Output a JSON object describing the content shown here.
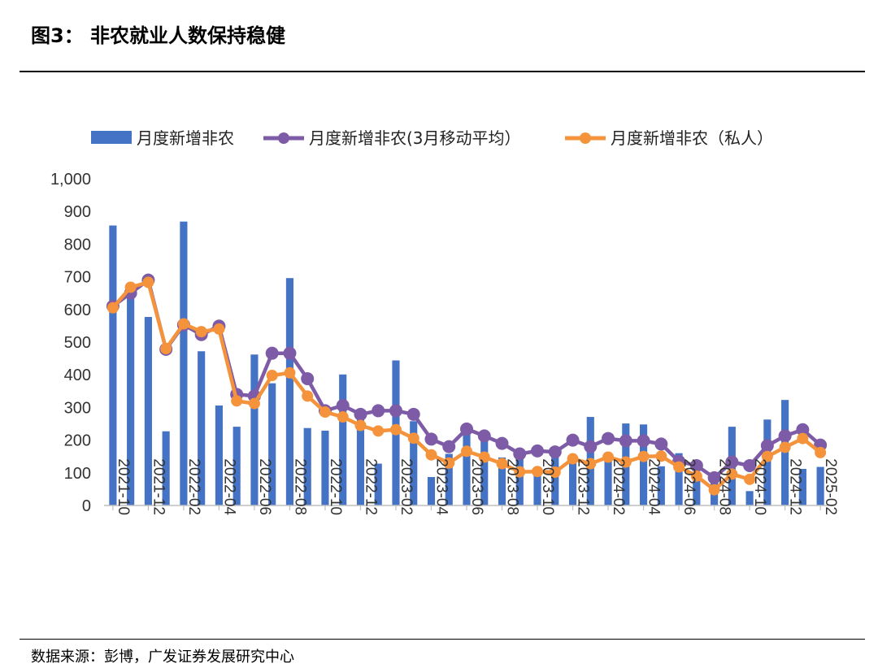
{
  "figure": {
    "title": "图3：  非农就业人数保持稳健",
    "source": "数据来源：彭博，广发证券发展研究中心"
  },
  "colors": {
    "bar": "#4472C4",
    "ma3": "#7D5BA6",
    "private": "#F4933B",
    "axis": "#BFBFBF",
    "rule": "#000000"
  },
  "chart_data": {
    "type": "bar",
    "ylim": [
      0,
      1000
    ],
    "yticks": [
      "0",
      "100",
      "200",
      "300",
      "400",
      "500",
      "600",
      "700",
      "800",
      "900",
      "1,000"
    ],
    "legend": "top",
    "grid": false,
    "x": [
      "2021-10",
      "2021-11",
      "2021-12",
      "2022-01",
      "2022-02",
      "2022-03",
      "2022-04",
      "2022-05",
      "2022-06",
      "2022-07",
      "2022-08",
      "2022-09",
      "2022-10",
      "2022-11",
      "2022-12",
      "2023-01",
      "2023-02",
      "2023-03",
      "2023-04",
      "2023-05",
      "2023-06",
      "2023-07",
      "2023-08",
      "2023-09",
      "2023-10",
      "2023-11",
      "2023-12",
      "2024-01",
      "2024-02",
      "2024-03",
      "2024-04",
      "2024-05",
      "2024-06",
      "2024-07",
      "2024-08",
      "2024-09",
      "2024-10",
      "2024-11",
      "2024-12",
      "2025-01",
      "2025-02"
    ],
    "xtick_labels": [
      "2021-10",
      "",
      "2021-12",
      "",
      "2022-02",
      "",
      "2022-04",
      "",
      "2022-06",
      "",
      "2022-08",
      "",
      "2022-10",
      "",
      "2022-12",
      "",
      "2023-02",
      "",
      "2023-04",
      "",
      "2023-06",
      "",
      "2023-08",
      "",
      "2023-10",
      "",
      "2023-12",
      "",
      "2024-02",
      "",
      "2024-04",
      "",
      "2024-06",
      "",
      "2024-08",
      "",
      "2024-10",
      "",
      "2024-12",
      "",
      "2025-02"
    ],
    "series": [
      {
        "name": "月度新增非农",
        "type": "bar",
        "values": [
          857,
          640,
          577,
          227,
          869,
          472,
          306,
          241,
          462,
          374,
          696,
          237,
          229,
          401,
          275,
          128,
          444,
          258,
          87,
          158,
          228,
          215,
          147,
          155,
          112,
          160,
          150,
          271,
          157,
          251,
          248,
          120,
          160,
          89,
          80,
          241,
          44,
          263,
          323,
          112,
          118
        ]
      },
      {
        "name": "月度新增非农(3月移动平均）",
        "type": "line",
        "values": [
          610,
          650,
          690,
          478,
          553,
          523,
          549,
          340,
          335,
          466,
          466,
          388,
          290,
          306,
          279,
          290,
          290,
          279,
          203,
          180,
          234,
          213,
          190,
          158,
          167,
          164,
          200,
          180,
          205,
          198,
          198,
          188,
          135,
          122,
          85,
          133,
          122,
          183,
          213,
          232,
          185
        ]
      },
      {
        "name": "月度新增非农（私人）",
        "type": "line",
        "values": [
          605,
          668,
          683,
          480,
          556,
          532,
          540,
          320,
          312,
          398,
          406,
          335,
          286,
          271,
          245,
          228,
          232,
          206,
          155,
          130,
          166,
          148,
          128,
          103,
          104,
          102,
          143,
          128,
          148,
          133,
          150,
          151,
          118,
          90,
          48,
          96,
          80,
          150,
          178,
          205,
          162
        ]
      }
    ]
  }
}
